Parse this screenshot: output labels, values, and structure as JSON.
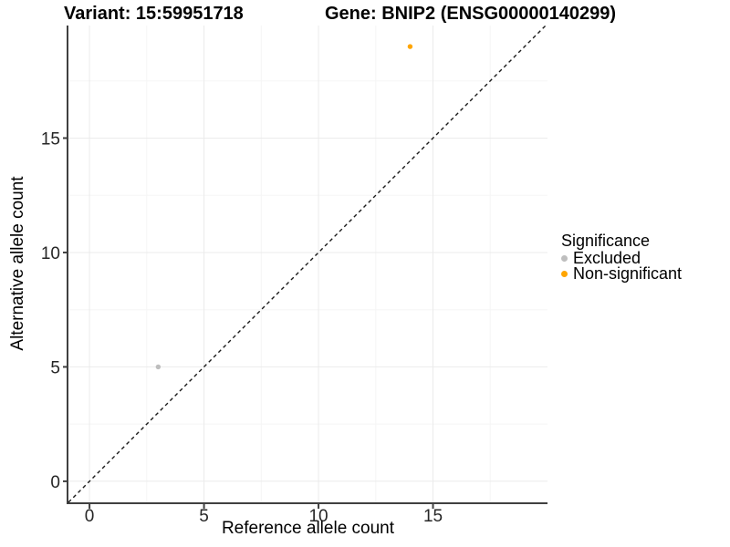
{
  "chart_data": {
    "type": "scatter",
    "title_left": "Variant: 15:59951718",
    "title_right": "Gene: BNIP2 (ENSG00000140299)",
    "xlabel": "Reference allele count",
    "ylabel": "Alternative allele count",
    "xlim": [
      -0.92,
      20.0
    ],
    "ylim": [
      -0.92,
      19.92
    ],
    "x_ticks": [
      0,
      5,
      10,
      15
    ],
    "y_ticks": [
      0,
      5,
      10,
      15
    ],
    "x_minor_ticks": [
      2.5,
      7.5,
      12.5,
      17.5
    ],
    "y_minor_ticks": [
      2.5,
      7.5,
      12.5,
      17.5
    ],
    "grid": true,
    "series": [
      {
        "name": "Excluded",
        "color": "#BEBEBE",
        "points": [
          [
            3,
            5
          ]
        ],
        "point_radius": 2.7
      },
      {
        "name": "Non-significant",
        "color": "#FFA500",
        "points": [
          [
            14,
            19
          ]
        ],
        "point_radius": 2.7
      }
    ],
    "identity_line": {
      "equation": "y = x",
      "style": "dashed",
      "color": "#1A1A1A"
    },
    "legend": {
      "title": "Significance",
      "position": "right",
      "entries": [
        {
          "label": "Excluded",
          "color": "#BEBEBE"
        },
        {
          "label": "Non-significant",
          "color": "#FFA500"
        }
      ]
    },
    "colors": {
      "grid_major": "#EBEBEB",
      "grid_minor": "#F5F5F5",
      "axis_line": "#404040",
      "tick_label": "#262626"
    }
  }
}
